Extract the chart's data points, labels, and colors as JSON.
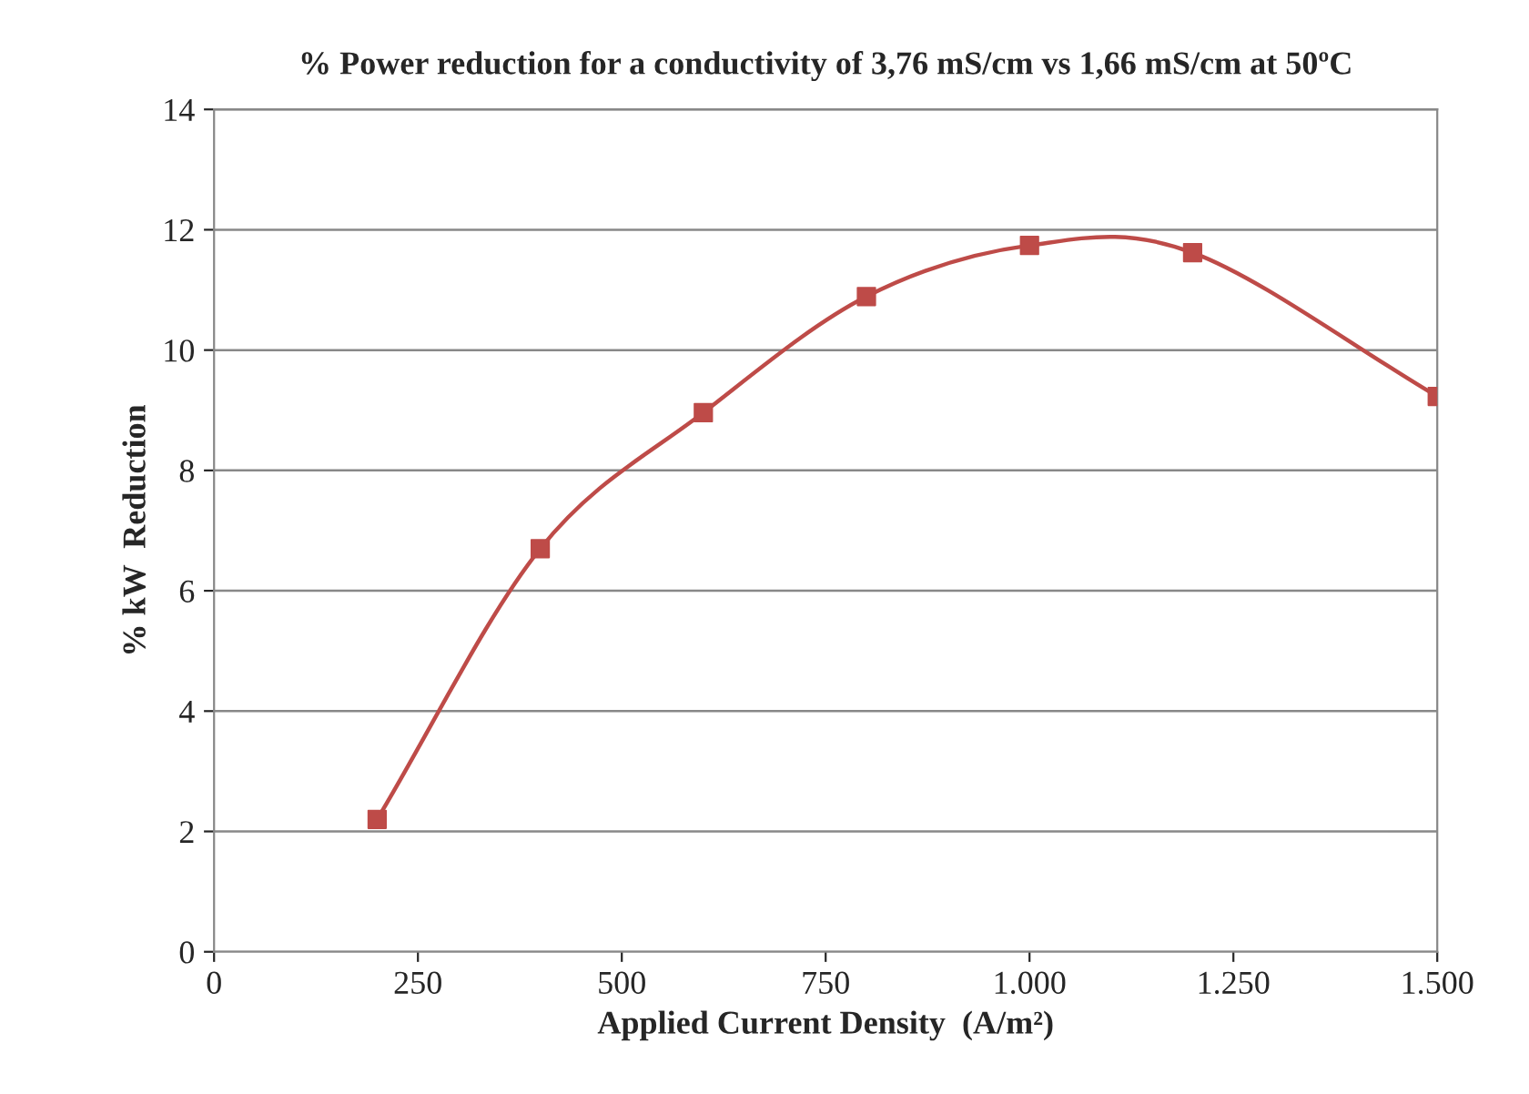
{
  "chart_data": {
    "type": "line",
    "title": "% Power reduction for a conductivity of 3,76 mS/cm vs 1,66 mS/cm at 50ºC",
    "xlabel": "Applied Current Density  (A/m²)",
    "ylabel": "% kW  Reduction",
    "x": [
      200,
      400,
      600,
      800,
      1000,
      1200,
      1500
    ],
    "series": [
      {
        "color": "#be4b48",
        "values": [
          2.2,
          6.7,
          8.96,
          10.89,
          11.74,
          11.62,
          9.23
        ]
      }
    ],
    "xlim": [
      0,
      1500
    ],
    "xticks": [
      0,
      {
        "value": 250,
        "label": "250"
      },
      {
        "value": 500,
        "label": "500"
      },
      {
        "value": 750,
        "label": "750"
      },
      {
        "value": 1000,
        "label": "1.000"
      },
      {
        "value": 1250,
        "label": "1.250"
      },
      {
        "value": 1500,
        "label": "1.500"
      }
    ],
    "ylim": [
      0,
      14
    ],
    "yticks": [
      0,
      2,
      4,
      6,
      8,
      10,
      12,
      14
    ],
    "grid": "y",
    "marker": "square",
    "line_style": "solid"
  }
}
